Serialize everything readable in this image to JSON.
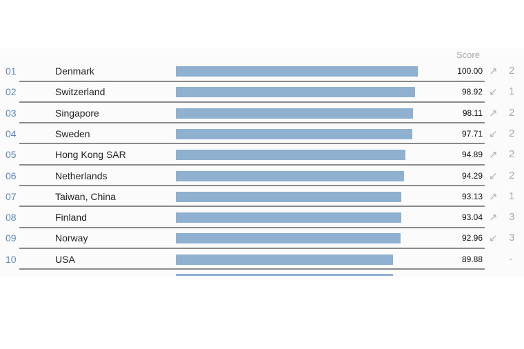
{
  "chart_data": {
    "type": "bar",
    "orientation": "horizontal",
    "column_header": "Score",
    "xlim": [
      0,
      100
    ],
    "rows": [
      {
        "rank": "01",
        "country": "Denmark",
        "score": 100.0,
        "score_label": "100.00",
        "trend": "up",
        "change": "2"
      },
      {
        "rank": "02",
        "country": "Switzerland",
        "score": 98.92,
        "score_label": "98.92",
        "trend": "down",
        "change": "1"
      },
      {
        "rank": "03",
        "country": "Singapore",
        "score": 98.11,
        "score_label": "98.11",
        "trend": "up",
        "change": "2"
      },
      {
        "rank": "04",
        "country": "Sweden",
        "score": 97.71,
        "score_label": "97.71",
        "trend": "down",
        "change": "2"
      },
      {
        "rank": "05",
        "country": "Hong Kong SAR",
        "score": 94.89,
        "score_label": "94.89",
        "trend": "up",
        "change": "2"
      },
      {
        "rank": "06",
        "country": "Netherlands",
        "score": 94.29,
        "score_label": "94.29",
        "trend": "down",
        "change": "2"
      },
      {
        "rank": "07",
        "country": "Taiwan, China",
        "score": 93.13,
        "score_label": "93.13",
        "trend": "up",
        "change": "1"
      },
      {
        "rank": "08",
        "country": "Finland",
        "score": 93.04,
        "score_label": "93.04",
        "trend": "up",
        "change": "3"
      },
      {
        "rank": "09",
        "country": "Norway",
        "score": 92.96,
        "score_label": "92.96",
        "trend": "down",
        "change": "3"
      },
      {
        "rank": "10",
        "country": "USA",
        "score": 89.88,
        "score_label": "89.88",
        "trend": "none",
        "change": "-"
      }
    ],
    "colors": {
      "bar": "#8fb0cf",
      "rank": "#5b86b5",
      "arrow": "#b0b0b0"
    }
  },
  "icons": {
    "up": "arrow-up-right-icon",
    "down": "arrow-down-left-icon"
  }
}
